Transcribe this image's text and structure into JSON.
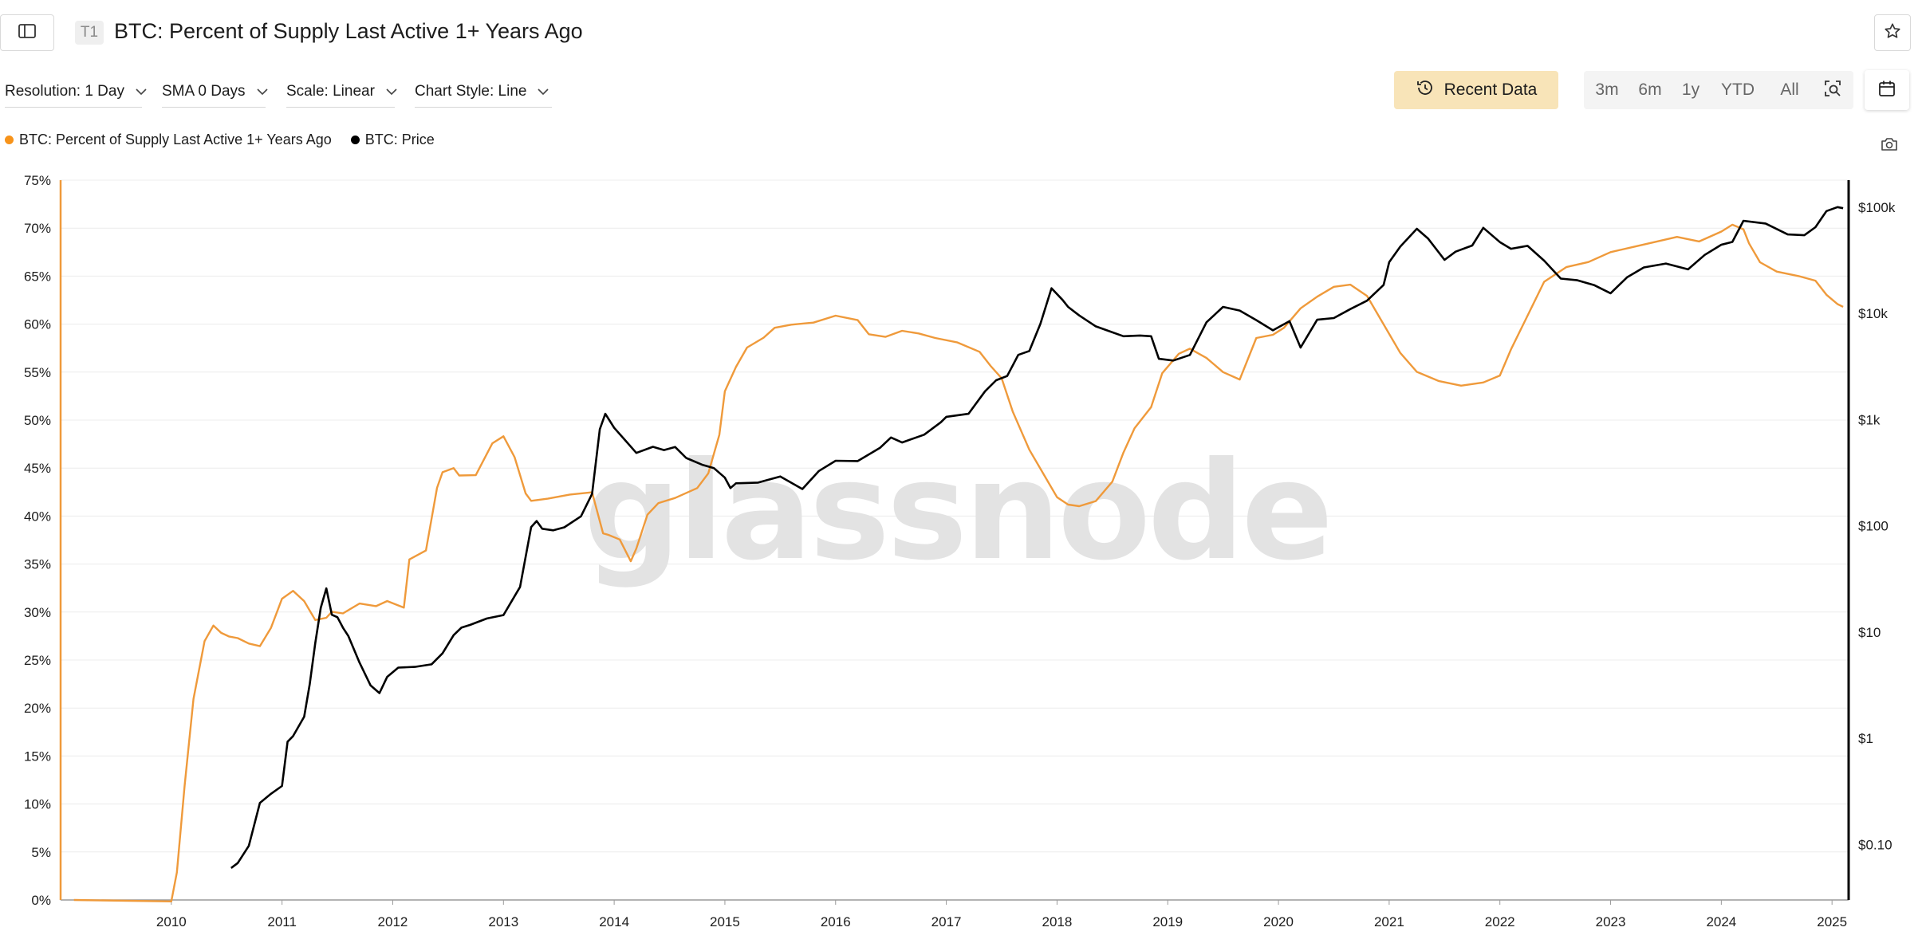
{
  "header": {
    "tier_badge": "T1",
    "title": "BTC: Percent of Supply Last Active 1+ Years Ago"
  },
  "controls": {
    "resolution": "Resolution: 1 Day",
    "sma": "SMA 0 Days",
    "scale": "Scale: Linear",
    "chart_style": "Chart Style: Line",
    "recent_data": "Recent Data",
    "ranges": [
      "3m",
      "6m",
      "1y",
      "YTD",
      "All"
    ]
  },
  "legend": [
    {
      "name": "BTC: Percent of Supply Last Active 1+ Years Ago",
      "color": "#f7931a"
    },
    {
      "name": "BTC: Price",
      "color": "#000000"
    }
  ],
  "colors": {
    "supply_series": "#ef9a3b",
    "price_series": "#000000",
    "accent_button": "#f8e4b8"
  },
  "icons": [
    "sidebar-toggle-icon",
    "star-icon",
    "chevron-down-icon",
    "history-icon",
    "zoom-search-icon",
    "calendar-icon",
    "camera-icon"
  ],
  "watermark": "glassnode",
  "chart_data": {
    "type": "line",
    "left_axis": {
      "ticks": [
        0,
        5,
        10,
        15,
        20,
        25,
        30,
        35,
        40,
        45,
        50,
        55,
        60,
        65,
        70,
        75
      ],
      "labels": [
        "0%",
        "5%",
        "10%",
        "15%",
        "20%",
        "25%",
        "30%",
        "35%",
        "40%",
        "45%",
        "50%",
        "55%",
        "60%",
        "65%",
        "70%",
        "75%"
      ],
      "ylim": [
        0,
        75
      ]
    },
    "right_axis": {
      "scale": "log",
      "ticks": [
        0.1,
        1,
        10,
        100,
        1000,
        10000,
        100000
      ],
      "labels": [
        "$0.10",
        "$1",
        "$10",
        "$100",
        "$1k",
        "$10k",
        "$100k"
      ],
      "ylim": [
        0.03,
        180000
      ]
    },
    "x_axis": {
      "ticks": [
        2010,
        2011,
        2012,
        2013,
        2014,
        2015,
        2016,
        2017,
        2018,
        2019,
        2020,
        2021,
        2022,
        2023,
        2024,
        2025
      ],
      "labels": [
        "2010",
        "2011",
        "2012",
        "2013",
        "2014",
        "2015",
        "2016",
        "2017",
        "2018",
        "2019",
        "2020",
        "2021",
        "2022",
        "2023",
        "2024",
        "2025"
      ],
      "xlim": [
        2009.0,
        2025.15
      ]
    },
    "grid": "horizontal",
    "legend_position": "top-left",
    "series": [
      {
        "name": "BTC: Percent of Supply Last Active 1+ Years Ago",
        "axis": "left",
        "x": [
          2009.12,
          2010.0,
          2010.05,
          2010.12,
          2010.2,
          2010.3,
          2010.38,
          2010.45,
          2010.52,
          2010.6,
          2010.7,
          2010.8,
          2010.9,
          2011.0,
          2011.1,
          2011.2,
          2011.3,
          2011.4,
          2011.45,
          2011.55,
          2011.7,
          2011.85,
          2011.95,
          2012.1,
          2012.15,
          2012.3,
          2012.4,
          2012.45,
          2012.55,
          2012.6,
          2012.75,
          2012.9,
          2013.0,
          2013.1,
          2013.2,
          2013.25,
          2013.4,
          2013.6,
          2013.8,
          2013.9,
          2013.95,
          2014.05,
          2014.15,
          2014.2,
          2014.3,
          2014.4,
          2014.55,
          2014.75,
          2014.85,
          2014.95,
          2015.0,
          2015.1,
          2015.2,
          2015.35,
          2015.45,
          2015.6,
          2015.8,
          2016.0,
          2016.2,
          2016.3,
          2016.45,
          2016.6,
          2016.75,
          2016.9,
          2017.1,
          2017.3,
          2017.4,
          2017.5,
          2017.6,
          2017.75,
          2017.9,
          2018.0,
          2018.1,
          2018.2,
          2018.35,
          2018.5,
          2018.6,
          2018.7,
          2018.85,
          2018.95,
          2019.1,
          2019.2,
          2019.35,
          2019.5,
          2019.65,
          2019.8,
          2019.95,
          2020.05,
          2020.2,
          2020.35,
          2020.5,
          2020.65,
          2020.8,
          2020.95,
          2021.1,
          2021.25,
          2021.45,
          2021.65,
          2021.85,
          2022.0,
          2022.1,
          2022.25,
          2022.4,
          2022.6,
          2022.8,
          2023.0,
          2023.2,
          2023.4,
          2023.6,
          2023.8,
          2024.0,
          2024.1,
          2024.2,
          2024.25,
          2024.35,
          2024.5,
          2024.7,
          2024.85,
          2024.95,
          2025.05,
          2025.1
        ],
        "y": [
          0,
          0,
          3,
          12,
          21,
          27,
          28.6,
          27.8,
          27.4,
          27.2,
          26.6,
          26.3,
          28.5,
          31.5,
          32.3,
          31.2,
          29.2,
          29.4,
          30.0,
          29.8,
          30.8,
          30.5,
          31.0,
          30.6,
          35.6,
          36.5,
          43.0,
          44.6,
          45.0,
          44.2,
          44.2,
          47.5,
          48.2,
          46.0,
          42.5,
          41.7,
          41.9,
          42.3,
          42.5,
          38.2,
          38.0,
          37.5,
          35.2,
          36.5,
          40.0,
          41.5,
          42.0,
          43.0,
          44.5,
          48.5,
          53.0,
          55.5,
          57.5,
          58.5,
          59.5,
          59.8,
          60.3,
          61.0,
          60.5,
          59.0,
          58.7,
          59.3,
          59.0,
          58.5,
          58.0,
          57.0,
          55.5,
          54.5,
          51.0,
          47.0,
          44.0,
          42.0,
          41.2,
          41.0,
          41.5,
          43.5,
          46.5,
          49.0,
          51.5,
          55.0,
          57.0,
          57.5,
          56.5,
          55.0,
          54.2,
          58.5,
          58.8,
          59.5,
          61.5,
          63.0,
          64.0,
          64.2,
          63.0,
          60.0,
          57.0,
          55.0,
          54.0,
          53.5,
          53.8,
          54.5,
          57.5,
          61.0,
          64.5,
          66.0,
          66.5,
          67.5,
          68.0,
          68.5,
          69.0,
          68.5,
          69.5,
          70.5,
          70.0,
          68.5,
          66.5,
          65.5,
          65.0,
          64.5,
          63.0,
          62.0,
          61.8
        ]
      },
      {
        "name": "BTC: Price",
        "axis": "right",
        "x": [
          2010.54,
          2010.6,
          2010.7,
          2010.8,
          2010.9,
          2011.0,
          2011.05,
          2011.1,
          2011.2,
          2011.25,
          2011.3,
          2011.35,
          2011.4,
          2011.45,
          2011.5,
          2011.55,
          2011.6,
          2011.7,
          2011.8,
          2011.88,
          2011.95,
          2012.05,
          2012.2,
          2012.35,
          2012.45,
          2012.55,
          2012.62,
          2012.7,
          2012.85,
          2013.0,
          2013.15,
          2013.25,
          2013.3,
          2013.35,
          2013.45,
          2013.55,
          2013.7,
          2013.8,
          2013.87,
          2013.92,
          2014.0,
          2014.1,
          2014.2,
          2014.35,
          2014.45,
          2014.55,
          2014.65,
          2014.8,
          2014.9,
          2015.0,
          2015.05,
          2015.1,
          2015.3,
          2015.5,
          2015.7,
          2015.85,
          2016.0,
          2016.2,
          2016.4,
          2016.5,
          2016.6,
          2016.8,
          2016.95,
          2017.0,
          2017.2,
          2017.35,
          2017.45,
          2017.55,
          2017.65,
          2017.75,
          2017.85,
          2017.95,
          2018.05,
          2018.1,
          2018.2,
          2018.35,
          2018.45,
          2018.6,
          2018.75,
          2018.85,
          2018.92,
          2019.05,
          2019.2,
          2019.35,
          2019.5,
          2019.65,
          2019.8,
          2019.95,
          2020.1,
          2020.2,
          2020.35,
          2020.5,
          2020.65,
          2020.8,
          2020.95,
          2021.0,
          2021.1,
          2021.25,
          2021.35,
          2021.5,
          2021.6,
          2021.75,
          2021.85,
          2022.0,
          2022.1,
          2022.25,
          2022.4,
          2022.55,
          2022.7,
          2022.85,
          2023.0,
          2023.15,
          2023.3,
          2023.5,
          2023.7,
          2023.85,
          2024.0,
          2024.1,
          2024.2,
          2024.4,
          2024.6,
          2024.75,
          2024.85,
          2024.95,
          2025.05,
          2025.1
        ],
        "y": [
          0.06,
          0.07,
          0.1,
          0.25,
          0.3,
          0.35,
          0.9,
          1.0,
          1.5,
          3.0,
          8.5,
          18.0,
          27.0,
          15.0,
          14.0,
          11.0,
          9.0,
          5.0,
          3.0,
          2.5,
          3.5,
          5.0,
          5.0,
          5.2,
          6.5,
          9.5,
          11.0,
          11.5,
          13.0,
          13.8,
          25.0,
          90.0,
          120.0,
          100.0,
          95.0,
          100.0,
          125.0,
          200.0,
          800.0,
          1100.0,
          800.0,
          600.0,
          450.0,
          600.0,
          550.0,
          580.0,
          450.0,
          380.0,
          350.0,
          280.0,
          220.0,
          240.0,
          240.0,
          270.0,
          240.0,
          350.0,
          430.0,
          420.0,
          550.0,
          680.0,
          600.0,
          700.0,
          900.0,
          1000.0,
          1050.0,
          2000.0,
          2500.0,
          2700.0,
          4200.0,
          4500.0,
          8000.0,
          17000.0,
          13000.0,
          11000.0,
          9000.0,
          7000.0,
          7500.0,
          6500.0,
          6500.0,
          6300.0,
          3800.0,
          3600.0,
          4000.0,
          8000.0,
          11000.0,
          10000.0,
          8000.0,
          7500.0,
          9000.0,
          5000.0,
          9000.0,
          9200.0,
          11000.0,
          13000.0,
          18000.0,
          29000.0,
          40000.0,
          58000.0,
          55000.0,
          34000.0,
          40000.0,
          45000.0,
          65000.0,
          47000.0,
          40000.0,
          42000.0,
          30000.0,
          20000.0,
          19000.0,
          20000.0,
          16500.0,
          23000.0,
          28000.0,
          30000.0,
          26000.0,
          35000.0,
          43000.0,
          45000.0,
          70000.0,
          65000.0,
          60000.0,
          58000.0,
          68000.0,
          95000.0,
          102000.0,
          98000.0
        ]
      }
    ]
  }
}
